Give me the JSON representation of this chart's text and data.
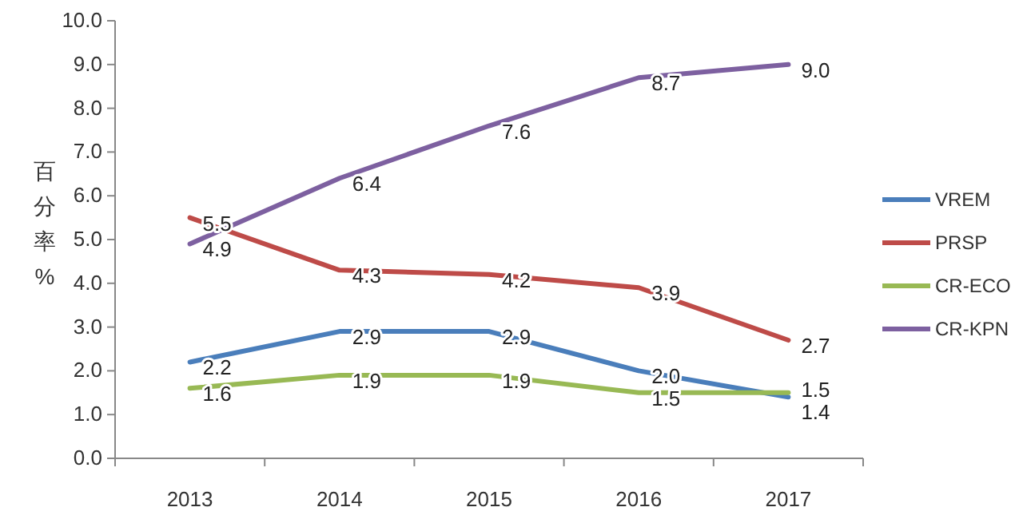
{
  "chart_data": {
    "type": "line",
    "ylabel": "百分率%",
    "categories": [
      "2013",
      "2014",
      "2015",
      "2016",
      "2017"
    ],
    "series": [
      {
        "name": "VREM",
        "color": "#4a7ebb",
        "values": [
          2.2,
          2.9,
          2.9,
          2.0,
          1.4
        ],
        "value_labels": [
          "2.2",
          "2.9",
          "2.9",
          "2.0",
          "1.4"
        ]
      },
      {
        "name": "PRSP",
        "color": "#be4b48",
        "values": [
          5.5,
          4.3,
          4.2,
          3.9,
          2.7
        ],
        "value_labels": [
          "5.5",
          "4.3",
          "4.2",
          "3.9",
          "2.7"
        ]
      },
      {
        "name": "CR-ECO",
        "color": "#98b954",
        "values": [
          1.6,
          1.9,
          1.9,
          1.5,
          1.5
        ],
        "value_labels": [
          "1.6",
          "1.9",
          "1.9",
          "1.5",
          "1.5"
        ]
      },
      {
        "name": "CR-KPN",
        "color": "#7d60a0",
        "values": [
          4.9,
          6.4,
          7.6,
          8.7,
          9.0
        ],
        "value_labels": [
          "4.9",
          "6.4",
          "7.6",
          "8.7",
          "9.0"
        ]
      }
    ],
    "ylim": [
      0,
      10
    ],
    "yticks": [
      {
        "value": 0,
        "label": "0.0"
      },
      {
        "value": 1,
        "label": "1.0"
      },
      {
        "value": 2,
        "label": "2.0"
      },
      {
        "value": 3,
        "label": "3.0"
      },
      {
        "value": 4,
        "label": "4.0"
      },
      {
        "value": 5,
        "label": "5.0"
      },
      {
        "value": 6,
        "label": "6.0"
      },
      {
        "value": 7,
        "label": "7.0"
      },
      {
        "value": 8,
        "label": "8.0"
      },
      {
        "value": 9,
        "label": "9.0"
      },
      {
        "value": 10,
        "label": "10.0"
      }
    ],
    "grid": false,
    "legend": "right",
    "marker": "none",
    "line_style": "solid"
  }
}
